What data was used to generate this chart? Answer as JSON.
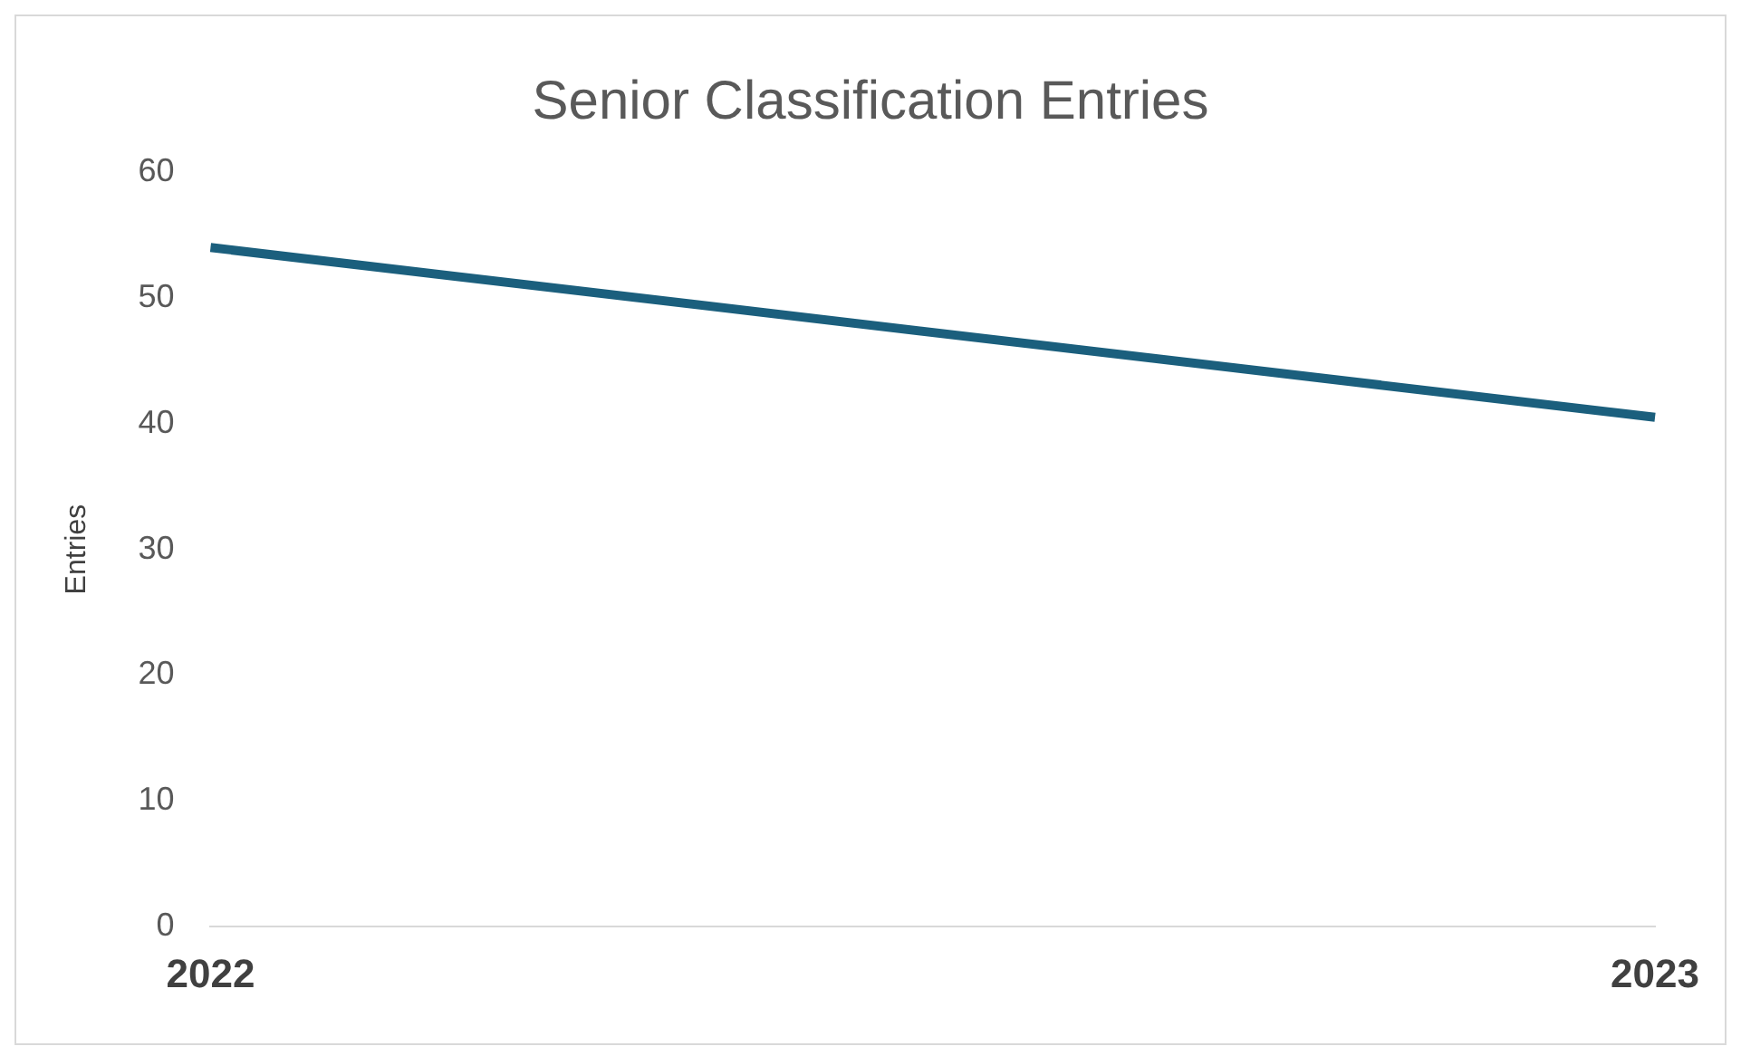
{
  "chart_data": {
    "type": "line",
    "title": "Senior Classification Entries",
    "ylabel": "Entries",
    "categories": [
      "2022",
      "2023"
    ],
    "series": [
      {
        "color": "#1b5f7d",
        "values": [
          54,
          40.5
        ]
      }
    ],
    "ylim": [
      0,
      60
    ],
    "yticks": [
      0,
      10,
      20,
      30,
      40,
      50,
      60
    ],
    "grid": false,
    "legend": false,
    "marker": "none",
    "line_style": "solid"
  }
}
